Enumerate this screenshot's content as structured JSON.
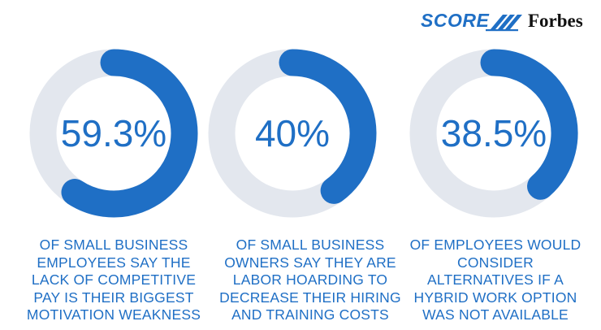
{
  "branding": {
    "score_text": "SCORE",
    "forbes_text": "Forbes",
    "score_icon": "score-slash-stripes-icon"
  },
  "colors": {
    "accent": "#1f6fc5",
    "track": "#e3e7ee",
    "text": "#1f6fc5",
    "forbes": "#111111"
  },
  "chart_data": [
    {
      "type": "pie",
      "style": "donut",
      "value": 59.3,
      "label": "59.3%",
      "caption": "OF SMALL BUSINESS\nEMPLOYEES SAY THE\nLACK OF COMPETITIVE\nPAY IS THEIR BIGGEST\nMOTIVATION WEAKNESS"
    },
    {
      "type": "pie",
      "style": "donut",
      "value": 40,
      "label": "40%",
      "caption": "OF SMALL BUSINESS\nOWNERS SAY THEY ARE\nLABOR HOARDING TO\nDECREASE THEIR HIRING\nAND TRAINING COSTS"
    },
    {
      "type": "pie",
      "style": "donut",
      "value": 38.5,
      "label": "38.5%",
      "caption": "OF EMPLOYEES WOULD\nCONSIDER\nALTERNATIVES IF A\nHYBRID WORK OPTION\nWAS NOT AVAILABLE"
    }
  ]
}
